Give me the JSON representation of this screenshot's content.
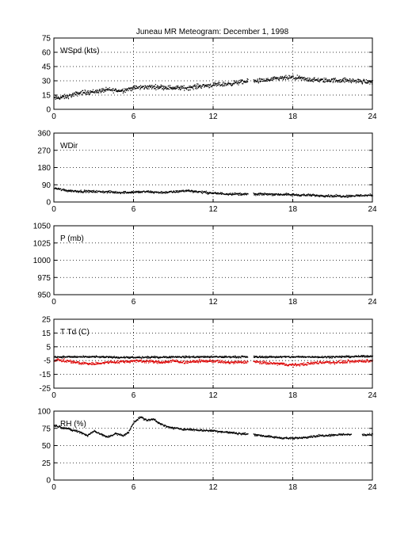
{
  "figure": {
    "title": "Juneau MR Meteogram:  December  1, 1998"
  },
  "chart_data": [
    {
      "type": "scatter",
      "panel_label": "WSpd (kts)",
      "xlim": [
        0,
        24
      ],
      "ylim": [
        0,
        75
      ],
      "x_ticks": [
        0,
        6,
        12,
        18,
        24
      ],
      "y_ticks": [
        0,
        15,
        30,
        45,
        60,
        75
      ],
      "grid": true,
      "series": [
        {
          "color": "#000000",
          "trend": [
            [
              0,
              12
            ],
            [
              1,
              14
            ],
            [
              2,
              18
            ],
            [
              3,
              19
            ],
            [
              4,
              21
            ],
            [
              5,
              20
            ],
            [
              6,
              23
            ],
            [
              7,
              24
            ],
            [
              8,
              24
            ],
            [
              9,
              23
            ],
            [
              10,
              23
            ],
            [
              11,
              25
            ],
            [
              12,
              26
            ],
            [
              13,
              27
            ],
            [
              14,
              29
            ],
            [
              15,
              30
            ],
            [
              16,
              31
            ],
            [
              17,
              33
            ],
            [
              18,
              34
            ],
            [
              19,
              32
            ],
            [
              20,
              31
            ],
            [
              21,
              31
            ],
            [
              22,
              31
            ],
            [
              23,
              30
            ],
            [
              24,
              29
            ]
          ],
          "spread": 3.5,
          "gaps": [
            [
              14.6,
              15.0
            ]
          ]
        }
      ]
    },
    {
      "type": "scatter",
      "panel_label": "WDir",
      "xlim": [
        0,
        24
      ],
      "ylim": [
        0,
        360
      ],
      "x_ticks": [
        0,
        6,
        12,
        18,
        24
      ],
      "y_ticks": [
        0,
        90,
        180,
        270,
        360
      ],
      "grid": true,
      "series": [
        {
          "color": "#000000",
          "trend": [
            [
              0,
              75
            ],
            [
              0.5,
              68
            ],
            [
              1,
              62
            ],
            [
              2,
              58
            ],
            [
              3,
              57
            ],
            [
              4,
              55
            ],
            [
              5,
              52
            ],
            [
              6,
              54
            ],
            [
              7,
              56
            ],
            [
              8,
              52
            ],
            [
              9,
              55
            ],
            [
              10,
              62
            ],
            [
              11,
              55
            ],
            [
              12,
              48
            ],
            [
              13,
              45
            ],
            [
              14,
              44
            ],
            [
              15,
              42
            ],
            [
              16,
              44
            ],
            [
              17,
              42
            ],
            [
              18,
              40
            ],
            [
              19,
              38
            ],
            [
              20,
              36
            ],
            [
              21,
              34
            ],
            [
              22,
              33
            ],
            [
              23,
              36
            ],
            [
              24,
              38
            ]
          ],
          "spread": 9,
          "gaps": [
            [
              14.6,
              15.0
            ]
          ]
        }
      ]
    },
    {
      "type": "scatter",
      "panel_label": "P (mb)",
      "xlim": [
        0,
        24
      ],
      "ylim": [
        950,
        1050
      ],
      "x_ticks": [
        0,
        6,
        12,
        18,
        24
      ],
      "y_ticks": [
        950,
        975,
        1000,
        1025,
        1050
      ],
      "grid": true,
      "series": []
    },
    {
      "type": "scatter",
      "panel_label": "T Td (C)",
      "xlim": [
        0,
        24
      ],
      "ylim": [
        -25,
        25
      ],
      "x_ticks": [
        0,
        6,
        12,
        18,
        24
      ],
      "y_ticks": [
        -25,
        -15,
        -5,
        5,
        15,
        25
      ],
      "grid": true,
      "series": [
        {
          "color": "#000000",
          "trend": [
            [
              0,
              -2
            ],
            [
              3,
              -2
            ],
            [
              6,
              -2.5
            ],
            [
              9,
              -2
            ],
            [
              12,
              -2
            ],
            [
              15,
              -2
            ],
            [
              18,
              -2
            ],
            [
              21,
              -2
            ],
            [
              24,
              -1.5
            ]
          ],
          "spread": 1,
          "gaps": [
            [
              14.6,
              15.0
            ]
          ]
        },
        {
          "color": "#dd0000",
          "trend": [
            [
              0,
              -4
            ],
            [
              1,
              -5
            ],
            [
              2,
              -6.5
            ],
            [
              3,
              -7
            ],
            [
              4,
              -6
            ],
            [
              5,
              -5.5
            ],
            [
              6,
              -5
            ],
            [
              7,
              -5
            ],
            [
              8,
              -6
            ],
            [
              9,
              -5
            ],
            [
              10,
              -6
            ],
            [
              11,
              -5
            ],
            [
              12,
              -5
            ],
            [
              13,
              -6
            ],
            [
              14,
              -6
            ],
            [
              15,
              -5.5
            ],
            [
              16,
              -6.5
            ],
            [
              17,
              -7
            ],
            [
              18,
              -8
            ],
            [
              19,
              -7
            ],
            [
              20,
              -6
            ],
            [
              21,
              -6
            ],
            [
              22,
              -5.5
            ],
            [
              23,
              -5
            ],
            [
              24,
              -5
            ]
          ],
          "spread": 1.6,
          "gaps": [
            [
              14.6,
              15.0
            ]
          ]
        }
      ]
    },
    {
      "type": "scatter",
      "panel_label": "RH (%)",
      "xlim": [
        0,
        24
      ],
      "ylim": [
        0,
        100
      ],
      "x_ticks": [
        0,
        6,
        12,
        18,
        24
      ],
      "y_ticks": [
        0,
        25,
        50,
        75,
        100
      ],
      "grid": true,
      "series": [
        {
          "color": "#000000",
          "trend": [
            [
              0,
              80
            ],
            [
              1,
              75
            ],
            [
              2,
              70
            ],
            [
              2.5,
              65
            ],
            [
              3,
              72
            ],
            [
              3.5,
              67
            ],
            [
              4,
              63
            ],
            [
              4.6,
              68
            ],
            [
              5.2,
              65
            ],
            [
              5.6,
              70
            ],
            [
              6,
              85
            ],
            [
              6.5,
              92
            ],
            [
              7,
              87
            ],
            [
              7.5,
              89
            ],
            [
              8,
              82
            ],
            [
              8.5,
              78
            ],
            [
              9,
              76
            ],
            [
              10,
              74
            ],
            [
              11,
              73
            ],
            [
              12,
              72
            ],
            [
              13,
              70
            ],
            [
              14,
              68
            ],
            [
              15,
              67
            ],
            [
              16,
              64
            ],
            [
              17,
              62
            ],
            [
              18,
              61
            ],
            [
              19,
              63
            ],
            [
              20,
              65
            ],
            [
              21,
              66
            ],
            [
              22,
              67
            ],
            [
              23,
              66
            ],
            [
              24,
              67
            ]
          ],
          "spread": 2.2,
          "gaps": [
            [
              14.6,
              15.0
            ],
            [
              22.4,
              23.2
            ]
          ]
        }
      ]
    }
  ]
}
